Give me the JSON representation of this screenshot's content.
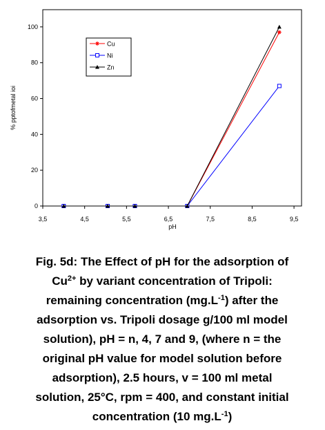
{
  "chart_data": {
    "type": "line",
    "x_label": "pH",
    "y_label": "% pptofmetal ioi",
    "x": [
      4,
      5.05,
      5.7,
      6.95,
      9.15
    ],
    "series": [
      {
        "name": "Cu",
        "color": "#ff0000",
        "marker": "star",
        "values": [
          0,
          0,
          0,
          0,
          97
        ]
      },
      {
        "name": "Ni",
        "color": "#0000ff",
        "marker": "square",
        "values": [
          0,
          0,
          0,
          0,
          67
        ]
      },
      {
        "name": "Zn",
        "color": "#000000",
        "marker": "triangle",
        "values": [
          0,
          0,
          0,
          0,
          100
        ]
      }
    ],
    "xlim": [
      3.5,
      9.68
    ],
    "ylim": [
      0,
      109.6
    ],
    "xticks": [
      {
        "value": 3.5,
        "label": "3,5"
      },
      {
        "value": 4.5,
        "label": "4,5"
      },
      {
        "value": 5.5,
        "label": "5,5"
      },
      {
        "value": 6.5,
        "label": "6,5"
      },
      {
        "value": 7.5,
        "label": "7,5"
      },
      {
        "value": 8.5,
        "label": "8,5"
      },
      {
        "value": 9.5,
        "label": "9,5"
      }
    ],
    "yticks": [
      0,
      20,
      40,
      60,
      80,
      100
    ]
  },
  "caption": [
    [
      "Fig. 5d: The Effect of pH for the adsorption of"
    ],
    [
      "Cu",
      {
        "sup": "2+"
      },
      " by variant concentration of Tripoli:"
    ],
    [
      "remaining concentration (mg.L",
      {
        "sup": "-1"
      },
      ") after the"
    ],
    [
      "adsorption vs. Tripoli dosage g/100 ml model"
    ],
    [
      "solution), pH = n, 4, 7 and 9,  (where n = the"
    ],
    [
      "original pH value for model solution before"
    ],
    [
      "adsorption), 2.5 hours, v = 100 ml metal"
    ],
    [
      "solution, 25°C, rpm = 400, and constant initial"
    ],
    [
      "concentration (10 mg.L",
      {
        "sup": "-1"
      },
      ")"
    ]
  ]
}
